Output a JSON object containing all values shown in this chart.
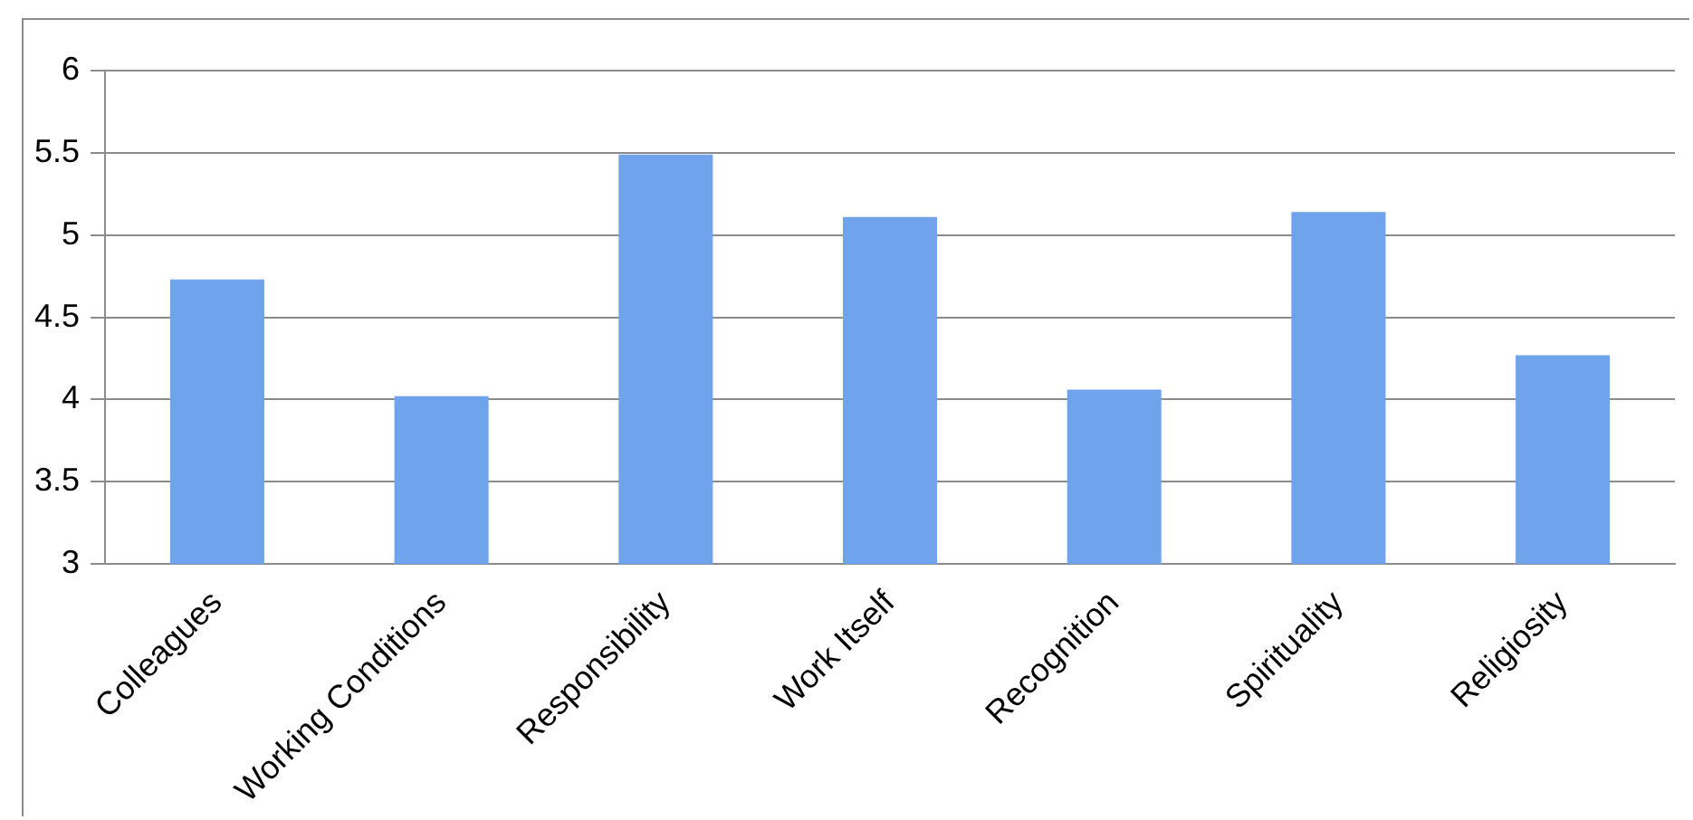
{
  "chart_data": {
    "type": "bar",
    "categories": [
      "Colleagues",
      "Working Conditions",
      "Responsibility",
      "Work Itself",
      "Recognition",
      "Spirituality",
      "Religiosity"
    ],
    "values": [
      4.73,
      4.02,
      5.49,
      5.11,
      4.06,
      5.14,
      4.27
    ],
    "color": "#6fa3ec",
    "ylim": [
      3,
      6
    ],
    "yticks": [
      3,
      3.5,
      4,
      4.5,
      5,
      5.5,
      6
    ],
    "grid": "y",
    "legend": false
  }
}
